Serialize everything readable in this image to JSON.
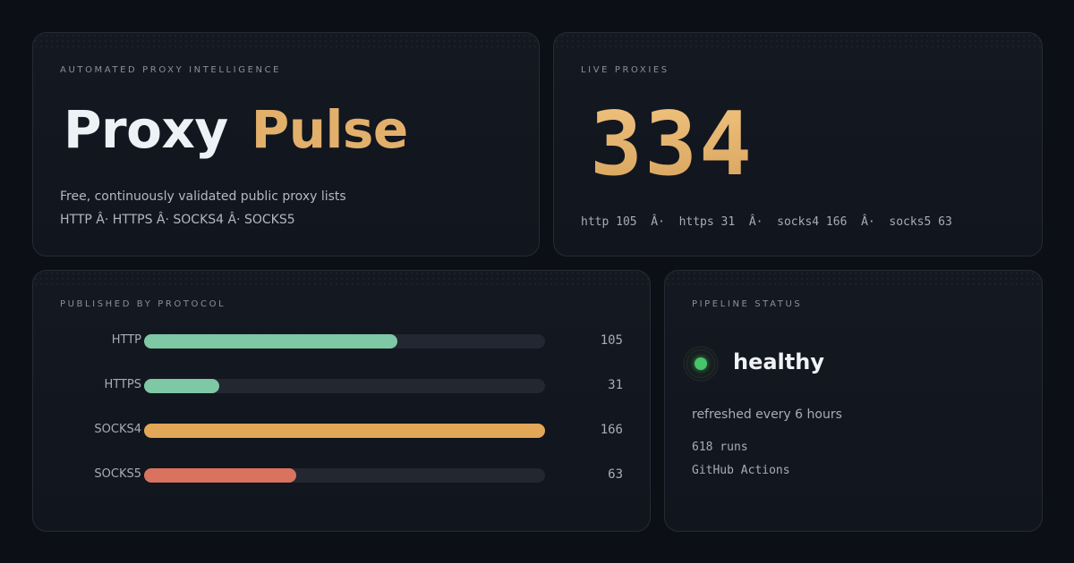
{
  "brand": {
    "eyebrow": "AUTOMATED PROXY INTELLIGENCE",
    "title_word1": "Proxy",
    "title_word2": "Pulse",
    "description": "Free, continuously validated public proxy lists",
    "protocols_line": "HTTP Â· HTTPS Â· SOCKS4 Â· SOCKS5"
  },
  "live": {
    "eyebrow": "LIVE PROXIES",
    "count": "334",
    "breakdown": "http 105  Â·  https 31  Â·  socks4 166  Â·  socks5 63"
  },
  "protocol_chart": {
    "eyebrow": "PUBLISHED BY PROTOCOL",
    "max": 166,
    "rows": [
      {
        "label": "HTTP",
        "value": 105,
        "color": "#7ec8a5"
      },
      {
        "label": "HTTPS",
        "value": 31,
        "color": "#7ec8a5"
      },
      {
        "label": "SOCKS4",
        "value": 166,
        "color": "#e3a758"
      },
      {
        "label": "SOCKS5",
        "value": 63,
        "color": "#d9735f"
      }
    ]
  },
  "pipeline": {
    "eyebrow": "PIPELINE STATUS",
    "status": "healthy",
    "status_color": "#46c56a",
    "refresh": "refreshed every 6 hours",
    "runs": "618 runs",
    "ci": "GitHub Actions"
  }
}
